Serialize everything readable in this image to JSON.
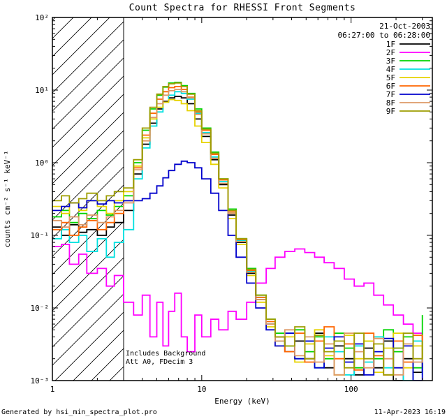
{
  "title": "Count Spectra for RHESSI Front Segments",
  "header": {
    "date": "21-Oct-2003",
    "time_range": "06:27:00 to 06:28:00"
  },
  "annotations": {
    "background": "Includes Background",
    "attenuator": "Att A0, FDecim 3"
  },
  "footer": {
    "generated_by": "Generated by hsi_min_spectra_plot.pro",
    "timestamp": "11-Apr-2023 16:19"
  },
  "chart_data": {
    "type": "line",
    "subtype": "staircase-spectrum",
    "title": "Count Spectra for RHESSI Front Segments",
    "xlabel": "Energy (keV)",
    "ylabel": "counts cm⁻² s⁻¹ keV⁻¹",
    "xscale": "log",
    "yscale": "log",
    "xlim": [
      1,
      350
    ],
    "ylim": [
      0.001,
      100
    ],
    "grid": false,
    "legend_position": "top-right",
    "x_ticks": [
      {
        "value": 1,
        "label": "1"
      },
      {
        "value": 10,
        "label": "10"
      },
      {
        "value": 100,
        "label": "100"
      }
    ],
    "y_ticks": [
      {
        "value": 100,
        "label": "10²"
      },
      {
        "value": 10,
        "label": "10¹"
      },
      {
        "value": 1,
        "label": "10⁰"
      },
      {
        "value": 0.1,
        "label": "10⁻¹"
      },
      {
        "value": 0.01,
        "label": "10⁻²"
      },
      {
        "value": 0.001,
        "label": "10⁻³"
      }
    ],
    "hatch_region": {
      "xmin": 1,
      "xmax": 3
    },
    "x": [
      1.0,
      1.15,
      1.3,
      1.5,
      1.7,
      2.0,
      2.3,
      2.6,
      3.0,
      3.5,
      4.0,
      4.5,
      5.0,
      5.5,
      6.0,
      6.6,
      7.3,
      8.0,
      9.0,
      10,
      11.5,
      13,
      15,
      17,
      20,
      23,
      27,
      31,
      36,
      42,
      49,
      57,
      66,
      77,
      90,
      105,
      122,
      142,
      165,
      192,
      224,
      260,
      300
    ],
    "series": [
      {
        "name": "1F",
        "color": "#000000",
        "values": [
          0.13,
          0.1,
          0.14,
          0.11,
          0.12,
          0.1,
          0.13,
          0.15,
          0.22,
          0.7,
          1.8,
          3.5,
          5.5,
          7.0,
          7.8,
          8.2,
          7.8,
          6.5,
          4.0,
          2.3,
          1.1,
          0.5,
          0.19,
          0.08,
          0.03,
          0.013,
          0.006,
          0.004,
          0.0025,
          0.0035,
          0.002,
          0.0045,
          0.0015,
          0.003,
          0.002,
          0.0012,
          0.0028,
          0.0015,
          0.0035,
          0.001,
          0.002,
          0.0013,
          0.0018
        ]
      },
      {
        "name": "2F",
        "color": "#ff00ff",
        "values": [
          0.07,
          0.075,
          0.04,
          0.055,
          0.03,
          0.035,
          0.02,
          0.028,
          0.012,
          0.008,
          0.015,
          0.004,
          0.012,
          0.003,
          0.009,
          0.016,
          0.004,
          0.0025,
          0.008,
          0.004,
          0.007,
          0.005,
          0.009,
          0.007,
          0.012,
          0.022,
          0.035,
          0.05,
          0.06,
          0.065,
          0.058,
          0.05,
          0.042,
          0.035,
          0.025,
          0.02,
          0.022,
          0.015,
          0.011,
          0.008,
          0.006,
          0.0045,
          0.0035
        ]
      },
      {
        "name": "3F",
        "color": "#00d400",
        "values": [
          0.18,
          0.22,
          0.15,
          0.2,
          0.17,
          0.22,
          0.19,
          0.25,
          0.35,
          1.0,
          2.8,
          5.5,
          8.5,
          11.0,
          12.5,
          12.8,
          11.5,
          9.0,
          5.5,
          3.0,
          1.4,
          0.6,
          0.23,
          0.09,
          0.035,
          0.015,
          0.007,
          0.0045,
          0.003,
          0.005,
          0.0025,
          0.004,
          0.002,
          0.0045,
          0.0028,
          0.0015,
          0.0035,
          0.002,
          0.005,
          0.0025,
          0.004,
          0.0015,
          0.008
        ]
      },
      {
        "name": "4F",
        "color": "#00e0e0",
        "values": [
          0.09,
          0.12,
          0.08,
          0.1,
          0.06,
          0.09,
          0.05,
          0.08,
          0.12,
          0.6,
          1.6,
          3.2,
          5.0,
          6.8,
          8.5,
          9.5,
          9.0,
          7.5,
          4.8,
          2.6,
          1.2,
          0.55,
          0.2,
          0.085,
          0.032,
          0.014,
          0.006,
          0.0035,
          0.0045,
          0.002,
          0.0035,
          0.0015,
          0.004,
          0.0025,
          0.0012,
          0.003,
          0.0018,
          0.004,
          0.0015,
          0.0028,
          0.001,
          0.0035,
          0.0012
        ]
      },
      {
        "name": "5F",
        "color": "#e6d200",
        "values": [
          0.25,
          0.2,
          0.28,
          0.22,
          0.3,
          0.25,
          0.2,
          0.3,
          0.4,
          0.9,
          2.2,
          4.0,
          5.8,
          6.8,
          7.4,
          7.2,
          6.5,
          5.2,
          3.2,
          1.9,
          0.95,
          0.45,
          0.17,
          0.075,
          0.028,
          0.012,
          0.0055,
          0.003,
          0.004,
          0.0018,
          0.0032,
          0.005,
          0.0022,
          0.0012,
          0.0042,
          0.002,
          0.0035,
          0.0013,
          0.0028,
          0.0045,
          0.0015,
          0.003,
          0.002
        ]
      },
      {
        "name": "6F",
        "color": "#ff6600",
        "values": [
          0.12,
          0.15,
          0.1,
          0.13,
          0.16,
          0.12,
          0.15,
          0.2,
          0.3,
          0.85,
          2.4,
          4.8,
          7.5,
          9.5,
          10.8,
          11.2,
          10.2,
          8.0,
          5.0,
          2.8,
          1.3,
          0.58,
          0.21,
          0.088,
          0.033,
          0.014,
          0.0065,
          0.004,
          0.0025,
          0.0045,
          0.0018,
          0.0035,
          0.0055,
          0.002,
          0.0032,
          0.0014,
          0.0045,
          0.0022,
          0.0012,
          0.0035,
          0.0018,
          0.0042,
          0.0015
        ]
      },
      {
        "name": "7F",
        "color": "#0000cc",
        "values": [
          0.22,
          0.25,
          0.28,
          0.24,
          0.3,
          0.27,
          0.3,
          0.28,
          0.3,
          0.3,
          0.32,
          0.38,
          0.48,
          0.62,
          0.78,
          0.95,
          1.05,
          1.0,
          0.85,
          0.6,
          0.38,
          0.22,
          0.1,
          0.05,
          0.022,
          0.01,
          0.005,
          0.003,
          0.0045,
          0.002,
          0.0035,
          0.0015,
          0.0028,
          0.004,
          0.0018,
          0.0032,
          0.0012,
          0.0025,
          0.0038,
          0.0015,
          0.003,
          0.001,
          0.002
        ]
      },
      {
        "name": "8F",
        "color": "#dd9966",
        "values": [
          0.16,
          0.13,
          0.18,
          0.14,
          0.19,
          0.15,
          0.18,
          0.22,
          0.28,
          0.8,
          2.0,
          4.2,
          6.5,
          8.5,
          9.8,
          10.2,
          9.5,
          7.8,
          4.6,
          2.5,
          1.15,
          0.52,
          0.2,
          0.082,
          0.031,
          0.013,
          0.006,
          0.0035,
          0.005,
          0.0022,
          0.004,
          0.0018,
          0.0032,
          0.0012,
          0.0045,
          0.0025,
          0.0015,
          0.0038,
          0.002,
          0.0012,
          0.0032,
          0.0018,
          0.0025
        ]
      },
      {
        "name": "9F",
        "color": "#9d9d00",
        "values": [
          0.3,
          0.35,
          0.28,
          0.32,
          0.38,
          0.3,
          0.35,
          0.4,
          0.45,
          1.1,
          3.0,
          5.8,
          8.8,
          11.2,
          12.2,
          12.5,
          11.2,
          8.8,
          5.2,
          2.9,
          1.35,
          0.6,
          0.22,
          0.09,
          0.034,
          0.015,
          0.007,
          0.004,
          0.003,
          0.0055,
          0.002,
          0.0042,
          0.0025,
          0.0035,
          0.0015,
          0.0045,
          0.002,
          0.0032,
          0.0012,
          0.0028,
          0.0045,
          0.002,
          0.0035
        ]
      }
    ]
  }
}
